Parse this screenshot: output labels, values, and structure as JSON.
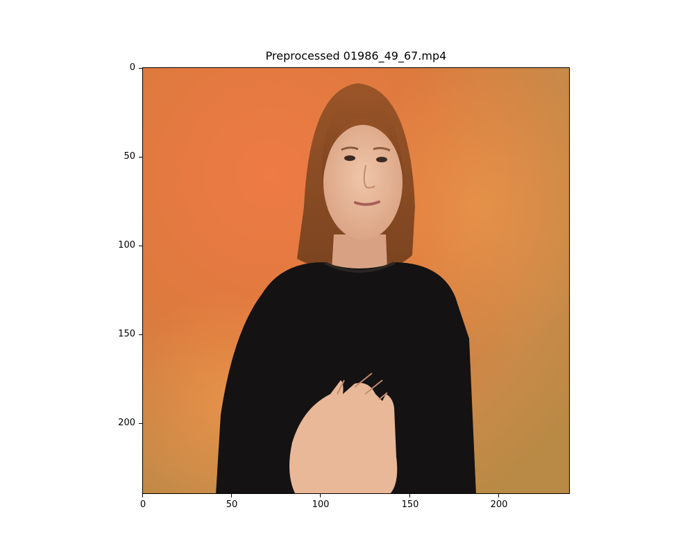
{
  "figure": {
    "title": "Preprocessed 01986_49_67.mp4"
  },
  "axes": {
    "x_ticks": [
      {
        "value": 0,
        "label": "0"
      },
      {
        "value": 50,
        "label": "50"
      },
      {
        "value": 100,
        "label": "100"
      },
      {
        "value": 150,
        "label": "150"
      },
      {
        "value": 200,
        "label": "200"
      }
    ],
    "y_ticks": [
      {
        "value": 0,
        "label": "0"
      },
      {
        "value": 50,
        "label": "50"
      },
      {
        "value": 100,
        "label": "100"
      },
      {
        "value": 150,
        "label": "150"
      },
      {
        "value": 200,
        "label": "200"
      }
    ],
    "x_range": [
      0,
      240
    ],
    "y_range": [
      0,
      240
    ],
    "y_inverted": true
  },
  "image": {
    "colors": {
      "background_orange": "#e8773f",
      "background_tan": "#c98a48",
      "shirt": "#141212",
      "hair": "#8a4a22",
      "skin": "#e6b89a"
    }
  }
}
